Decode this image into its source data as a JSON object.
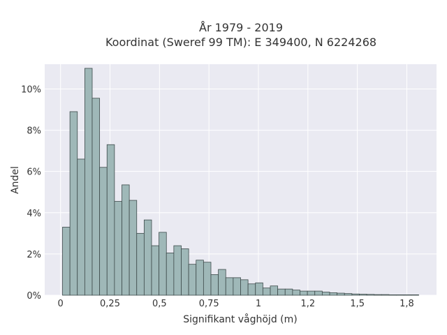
{
  "chart_data": {
    "type": "bar",
    "title_line1": "År 1979 - 2019",
    "title_line2": "Koordinat (Sweref 99 TM): E 349400, N 6224268",
    "xlabel": "Signifikant våghöjd (m)",
    "ylabel": "Andel",
    "xlim": [
      -0.08,
      1.9
    ],
    "ylim": [
      0,
      11.2
    ],
    "bin_width": 0.0375,
    "x_ticks": [
      0,
      0.25,
      0.5,
      0.75,
      1,
      1.25,
      1.5,
      1.75
    ],
    "x_tick_labels": [
      "0",
      "0,25",
      "0,5",
      "0,75",
      "1",
      "1,2",
      "1,5",
      "1,8"
    ],
    "y_ticks": [
      0,
      2,
      4,
      6,
      8,
      10
    ],
    "y_tick_labels": [
      "0%",
      "2%",
      "4%",
      "6%",
      "8%",
      "10%"
    ],
    "grid": true,
    "background_color": "#eaeaf2",
    "bar_color": "#9fb8b8",
    "bin_starts": [
      0.01,
      0.0475,
      0.085,
      0.1225,
      0.16,
      0.1975,
      0.235,
      0.2725,
      0.31,
      0.3475,
      0.385,
      0.4225,
      0.46,
      0.4975,
      0.535,
      0.5725,
      0.61,
      0.6475,
      0.685,
      0.7225,
      0.76,
      0.7975,
      0.835,
      0.8725,
      0.91,
      0.9475,
      0.985,
      1.0225,
      1.06,
      1.0975,
      1.135,
      1.1725,
      1.21,
      1.2475,
      1.285,
      1.3225,
      1.36,
      1.3975,
      1.435,
      1.4725,
      1.51,
      1.5475,
      1.585,
      1.6225,
      1.66,
      1.6975,
      1.735,
      1.7725
    ],
    "values": [
      3.3,
      8.9,
      6.6,
      11.0,
      9.55,
      6.2,
      7.3,
      4.55,
      5.35,
      4.6,
      3.0,
      3.65,
      2.4,
      3.05,
      2.05,
      2.4,
      2.25,
      1.5,
      1.7,
      1.6,
      1.0,
      1.25,
      0.85,
      0.85,
      0.75,
      0.55,
      0.6,
      0.35,
      0.45,
      0.3,
      0.3,
      0.25,
      0.2,
      0.2,
      0.2,
      0.15,
      0.12,
      0.1,
      0.08,
      0.06,
      0.05,
      0.04,
      0.03,
      0.03,
      0.02,
      0.02,
      0.02,
      0.02
    ]
  }
}
